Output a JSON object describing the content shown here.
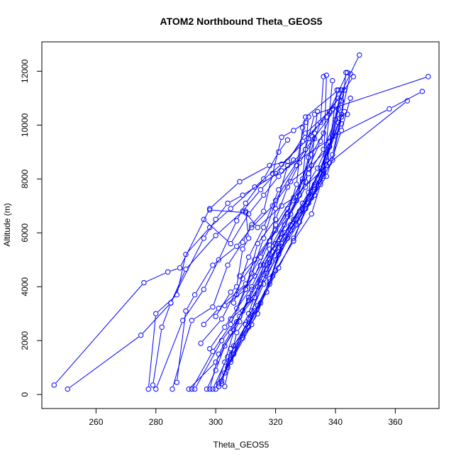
{
  "chart_data": {
    "type": "line",
    "title": "ATOM2 Northbound Theta_GEOS5",
    "xlabel": "Theta_GEOS5",
    "ylabel": "Altitude (m)",
    "xlim": [
      241.9,
      374.6
    ],
    "ylim": [
      -520,
      13090
    ],
    "x_ticks": [
      260,
      280,
      300,
      320,
      340,
      360
    ],
    "y_ticks": [
      0,
      2000,
      4000,
      6000,
      8000,
      10000,
      12000
    ],
    "grid": false,
    "legend": "none",
    "marker": "open-circle",
    "series_color": "#0000ff",
    "series": [
      {
        "x": [
          246,
          276,
          284,
          288,
          298,
          308,
          318,
          324,
          330,
          338,
          346
        ],
        "y": [
          350,
          4150,
          4550,
          4700,
          6900,
          7900,
          8500,
          8650,
          9700,
          10500,
          11800
        ]
      },
      {
        "x": [
          250.5,
          275,
          285,
          296,
          300,
          304,
          309,
          322,
          340,
          358,
          369
        ],
        "y": [
          200,
          2200,
          3400,
          5800,
          6500,
          7100,
          7400,
          8300,
          9600,
          10600,
          11250
        ]
      },
      {
        "x": [
          277.5,
          280,
          287,
          290,
          298,
          305,
          313,
          322,
          331,
          341,
          348
        ],
        "y": [
          200,
          3000,
          3700,
          5200,
          6200,
          6900,
          7700,
          8550,
          9500,
          11000,
          12600
        ]
      },
      {
        "x": [
          279,
          282,
          285,
          290,
          300,
          309,
          315,
          320,
          329,
          337,
          344
        ],
        "y": [
          350,
          2500,
          3400,
          4650,
          5900,
          6800,
          7600,
          8200,
          9400,
          10300,
          11950
        ]
      },
      {
        "x": [
          280,
          289,
          296,
          301,
          307,
          310,
          316,
          321,
          324
        ],
        "y": [
          200,
          2750,
          3900,
          5000,
          6450,
          7100,
          8000,
          9000,
          9450
        ]
      },
      {
        "x": [
          285.5,
          292,
          299,
          304,
          309,
          312,
          316,
          319,
          322,
          326,
          330
        ],
        "y": [
          200,
          2750,
          3250,
          4800,
          5650,
          6300,
          6800,
          8200,
          9550,
          9800,
          10100
        ]
      },
      {
        "x": [
          287,
          290,
          293,
          299,
          307,
          312,
          319,
          325,
          332,
          338,
          342
        ],
        "y": [
          450,
          3100,
          3700,
          4800,
          5500,
          6200,
          7000,
          7900,
          8500,
          9200,
          10050
        ]
      },
      {
        "x": [
          291,
          300,
          306,
          311,
          318,
          323,
          328,
          331,
          336,
          340,
          343
        ],
        "y": [
          200,
          1200,
          2400,
          3600,
          5200,
          6300,
          7400,
          8200,
          9100,
          10200,
          11300
        ]
      },
      {
        "x": [
          292,
          299,
          305,
          310,
          315,
          320,
          325,
          330,
          334,
          338,
          342
        ],
        "y": [
          200,
          1600,
          2600,
          3900,
          4800,
          5600,
          6700,
          7700,
          8400,
          9400,
          11300
        ]
      },
      {
        "x": [
          293,
          302,
          308,
          313,
          317,
          321,
          326,
          333,
          337,
          342,
          343.5
        ],
        "y": [
          200,
          2000,
          2900,
          3600,
          4500,
          5600,
          6500,
          7600,
          8700,
          10400,
          11950
        ]
      },
      {
        "x": [
          297,
          300,
          303,
          308,
          312,
          318,
          322,
          328,
          333,
          338,
          340.5
        ],
        "y": [
          200,
          900,
          1800,
          2700,
          3900,
          4900,
          5800,
          6800,
          7800,
          9200,
          11300
        ]
      },
      {
        "x": [
          298,
          301,
          305,
          309,
          315,
          320,
          325,
          331,
          337,
          342,
          345
        ],
        "y": [
          200,
          1500,
          2300,
          3100,
          4100,
          5000,
          6100,
          7100,
          8100,
          9800,
          11000
        ]
      },
      {
        "x": [
          299,
          304,
          309,
          314,
          320,
          326,
          330,
          335,
          339,
          342,
          344
        ],
        "y": [
          200,
          1400,
          2200,
          3300,
          4600,
          5700,
          6900,
          7900,
          8700,
          10300,
          10400
        ]
      },
      {
        "x": [
          300,
          303,
          307,
          311,
          317,
          323,
          329,
          334,
          338,
          341,
          343
        ],
        "y": [
          200,
          1200,
          2700,
          3500,
          4800,
          6000,
          7100,
          8000,
          9200,
          10100,
          10500
        ]
      },
      {
        "x": [
          301,
          306,
          310,
          316,
          321,
          327,
          333,
          339,
          345
        ],
        "y": [
          300,
          1500,
          2600,
          4100,
          5300,
          6500,
          7700,
          8900,
          11900
        ]
      },
      {
        "x": [
          302,
          305,
          311,
          318,
          322,
          329,
          335,
          339,
          342
        ],
        "y": [
          400,
          1700,
          2500,
          4200,
          5600,
          6900,
          8400,
          9600,
          11300
        ]
      },
      {
        "x": [
          303,
          307,
          312,
          316,
          320,
          325,
          331,
          337,
          341
        ],
        "y": [
          300,
          2300,
          3100,
          4300,
          5400,
          6300,
          7500,
          8800,
          10600
        ]
      },
      {
        "x": [
          301,
          305,
          311,
          315,
          321,
          326,
          332,
          336,
          341
        ],
        "y": [
          400,
          1300,
          2800,
          3400,
          4700,
          5800,
          7300,
          8300,
          10400
        ]
      },
      {
        "x": [
          302,
          306,
          313,
          319,
          326,
          332,
          335,
          337
        ],
        "y": [
          500,
          1800,
          3100,
          4400,
          5700,
          6700,
          7800,
          8500
        ]
      },
      {
        "x": [
          303,
          309,
          314,
          318,
          324,
          330,
          336,
          337
        ],
        "y": [
          800,
          2100,
          3000,
          4300,
          5800,
          6900,
          8100,
          11850
        ]
      },
      {
        "x": [
          304,
          310,
          317,
          321,
          328,
          333,
          336,
          339
        ],
        "y": [
          1000,
          2400,
          3800,
          5200,
          6400,
          7400,
          8200,
          11650
        ]
      },
      {
        "x": [
          305,
          312,
          318,
          322,
          327,
          331,
          333,
          334
        ],
        "y": [
          1200,
          2600,
          4100,
          5500,
          6300,
          7300,
          9700,
          10500
        ]
      },
      {
        "x": [
          300,
          305,
          307,
          309,
          311,
          310
        ],
        "y": [
          2900,
          3800,
          4000,
          5400,
          5800,
          6800
        ]
      },
      {
        "x": [
          311,
          314,
          318,
          320,
          324,
          326
        ],
        "y": [
          3000,
          4000,
          5000,
          6900,
          8500,
          8700
        ]
      },
      {
        "x": [
          305,
          313,
          316,
          322,
          327,
          331,
          335,
          336
        ],
        "y": [
          2800,
          3600,
          4800,
          6000,
          7200,
          8800,
          10100,
          11800
        ]
      },
      {
        "x": [
          307,
          312,
          316,
          320,
          327,
          330,
          341
        ],
        "y": [
          3200,
          4500,
          5800,
          7200,
          8500,
          10300,
          11300
        ]
      },
      {
        "x": [
          306,
          311,
          316,
          321,
          330,
          333,
          371
        ],
        "y": [
          3400,
          5100,
          6200,
          7600,
          9100,
          10400,
          11800
        ]
      },
      {
        "x": [
          296,
          301,
          310,
          315,
          320,
          329,
          331
        ],
        "y": [
          2600,
          3200,
          4100,
          5100,
          6300,
          7900,
          10300
        ]
      },
      {
        "x": [
          295,
          302,
          309,
          318,
          324,
          327,
          329
        ],
        "y": [
          1900,
          2800,
          4300,
          5700,
          6700,
          7800,
          9900
        ]
      },
      {
        "x": [
          298,
          303,
          312,
          318,
          324,
          330,
          332
        ],
        "y": [
          1700,
          2500,
          4000,
          5400,
          6600,
          7900,
          9600
        ]
      },
      {
        "x": [
          308,
          313,
          320,
          326,
          331,
          335,
          339
        ],
        "y": [
          4400,
          5000,
          6100,
          7200,
          8400,
          9400,
          10600
        ]
      },
      {
        "x": [
          307,
          313,
          318,
          324,
          329,
          332,
          336
        ],
        "y": [
          3700,
          4400,
          5700,
          6900,
          8000,
          8900,
          9700
        ]
      },
      {
        "x": [
          303,
          310,
          314,
          320,
          324,
          328,
          333
        ],
        "y": [
          3300,
          3900,
          5600,
          6500,
          7700,
          8600,
          9500
        ]
      },
      {
        "x": [
          298,
          310,
          314,
          322,
          326,
          338,
          364
        ],
        "y": [
          6850,
          6750,
          6200,
          7000,
          7300,
          8600,
          10900
        ]
      },
      {
        "x": [
          296,
          305,
          311,
          316,
          321,
          330,
          342
        ],
        "y": [
          6500,
          5600,
          6700,
          7400,
          8100,
          9100,
          10900
        ]
      }
    ]
  }
}
